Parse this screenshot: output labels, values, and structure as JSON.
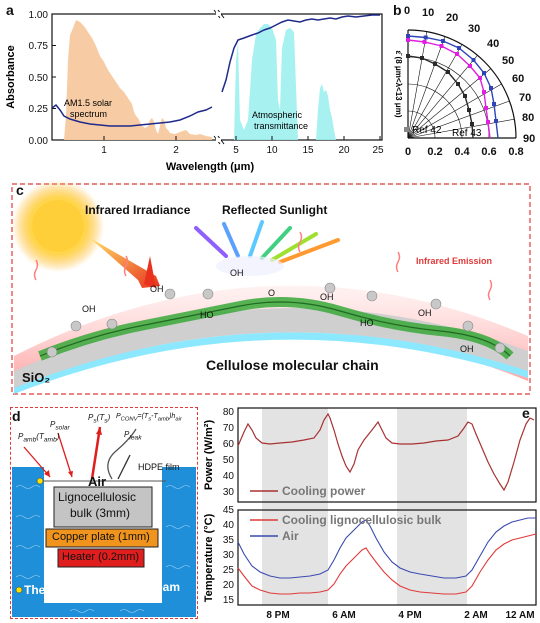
{
  "panel_a": {
    "letter": "a",
    "ylabel": "Absorbance",
    "xlabel": "Wavelength (μm)",
    "yticks": [
      "0.00",
      "0.25",
      "0.50",
      "0.75",
      "1.00"
    ],
    "xticks_left": [
      "1",
      "2"
    ],
    "xticks_right": [
      "5",
      "10",
      "15",
      "20",
      "25"
    ],
    "annot_solar": "AM1.5 solar spectrum",
    "annot_atm": "Atmospheric transmittance"
  },
  "panel_b": {
    "letter": "b",
    "ylabel": "ε̄ (8 μm<λ<13 μm)",
    "angle_ticks": [
      "0",
      "10",
      "20",
      "30",
      "40",
      "50",
      "60",
      "70",
      "80",
      "90"
    ],
    "radial_ticks": [
      "0",
      "0.2",
      "0.4",
      "0.6",
      "0.8"
    ],
    "ref42": "Ref 42",
    "ref43": "Ref 43"
  },
  "panel_c": {
    "letter": "c",
    "infrared_irradiance": "Infrared Irradiance",
    "reflected_sunlight": "Reflected Sunlight",
    "infrared_emission": "Infrared Emission",
    "cellulose_chain": "Cellulose molecular chain",
    "sio2": "SiO₂",
    "oh": "OH",
    "ho": "HO",
    "o": "O"
  },
  "panel_d": {
    "letter": "d",
    "p_amb": "P",
    "p_amb_sub": "amb",
    "p_amb_arg": "(T",
    "p_amb_arg_sub": "amb",
    "p_solar": "P",
    "p_solar_sub": "solar",
    "p_s": "P",
    "p_s_sub": "s",
    "p_s_arg": "(T",
    "p_s_arg_sub": "s",
    "p_conv": "P",
    "p_conv_sub": "CONV",
    "p_conv_eq": "=(T",
    "p_conv_eq_sub1": "s",
    "p_conv_eq_mid": "-T",
    "p_conv_eq_sub2": "amb",
    "p_conv_eq_end": ")h",
    "p_conv_eq_sub3": "air",
    "p_leak": "P",
    "p_leak_sub": "leak",
    "air": "Air",
    "hdpe": "HDPE film",
    "bulk_line1": "Lignocellulosic",
    "bulk_line2": "bulk (3mm)",
    "copper": "Copper plate (1mm)",
    "heater": "Heater (0.2mm)",
    "thermocouple": "Thermocouple",
    "foam": "Foam"
  },
  "panel_e": {
    "letter": "e",
    "ylabel_top": "Power (W/m²)",
    "ylabel_bottom": "Temperature (°C)",
    "legend_power": "Cooling power",
    "legend_bulk": "Cooling lignocellulosic bulk",
    "legend_air": "Air",
    "yticks_top": [
      "30",
      "40",
      "50",
      "60",
      "70",
      "80"
    ],
    "yticks_bottom": [
      "15",
      "20",
      "25",
      "30",
      "35",
      "40",
      "45"
    ],
    "xticks": [
      "8 PM",
      "6 AM",
      "4 PM",
      "2 AM",
      "12 AM"
    ]
  },
  "colors": {
    "absorbance_line": "#1f2a8a",
    "solar_fill": "#f7c9a0",
    "atm_fill": "#9ff0f0",
    "ref42": "#2a2a2a",
    "ref43": "#e020e0",
    "this_work": "#2e44b8",
    "power": "#a83232",
    "bulk": "#e03a3a",
    "air": "#3a4ab0",
    "dash_border": "#e03a3a",
    "water": "#1e8fd8",
    "copper": "#f0941e",
    "heater": "#e01e1e",
    "bulk_box": "#c4c4c4"
  }
}
